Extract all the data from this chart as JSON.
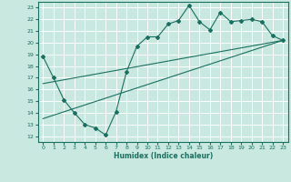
{
  "xlabel": "Humidex (Indice chaleur)",
  "ylabel": "",
  "bg_color": "#c8e8e0",
  "grid_color": "#ffffff",
  "line_color": "#1a7060",
  "xlim": [
    -0.5,
    23.5
  ],
  "ylim": [
    11.5,
    23.5
  ],
  "xticks": [
    0,
    1,
    2,
    3,
    4,
    5,
    6,
    7,
    8,
    9,
    10,
    11,
    12,
    13,
    14,
    15,
    16,
    17,
    18,
    19,
    20,
    21,
    22,
    23
  ],
  "yticks": [
    12,
    13,
    14,
    15,
    16,
    17,
    18,
    19,
    20,
    21,
    22,
    23
  ],
  "series1_x": [
    0,
    1,
    2,
    3,
    4,
    5,
    6,
    7,
    8,
    9,
    10,
    11,
    12,
    13,
    14,
    15,
    16,
    17,
    18,
    19,
    20,
    21,
    22,
    23
  ],
  "series1_y": [
    18.8,
    17.0,
    15.1,
    14.0,
    13.0,
    12.7,
    12.1,
    14.1,
    17.5,
    19.7,
    20.5,
    20.5,
    21.6,
    21.9,
    23.2,
    21.8,
    21.1,
    22.6,
    21.8,
    21.9,
    22.0,
    21.8,
    20.6,
    20.2
  ],
  "series2_x": [
    0,
    23
  ],
  "series2_y": [
    13.5,
    20.2
  ],
  "series3_x": [
    0,
    23
  ],
  "series3_y": [
    16.5,
    20.2
  ]
}
